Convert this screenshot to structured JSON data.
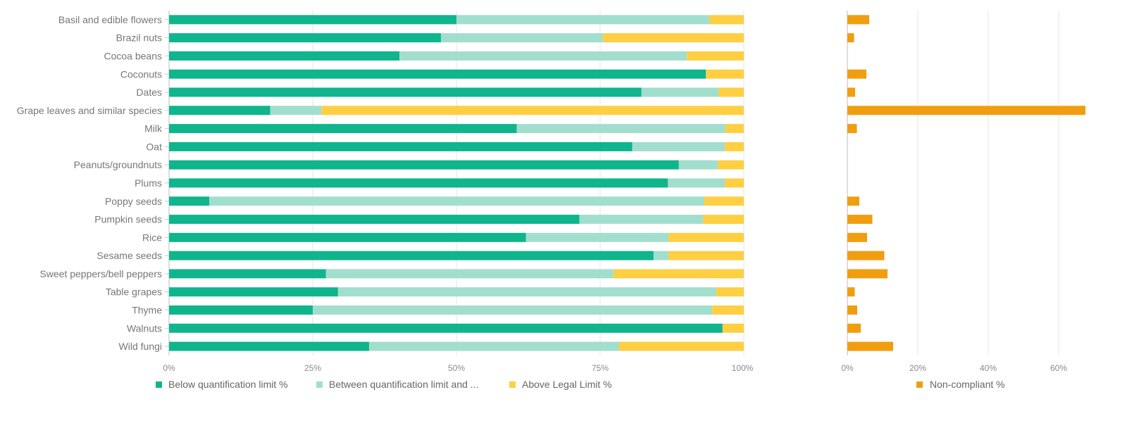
{
  "colors": {
    "below": "#0fb58c",
    "between": "#a2dece",
    "above": "#fecf43",
    "noncompliant": "#f09e10"
  },
  "chart_data": [
    {
      "type": "bar",
      "orientation": "horizontal",
      "stacked": "100%",
      "categories": [
        "Basil and edible flowers",
        "Brazil nuts",
        "Cocoa beans",
        "Coconuts",
        "Dates",
        "Grape leaves and similar species",
        "Milk",
        "Oat",
        "Peanuts/groundnuts",
        "Plums",
        "Poppy seeds",
        "Pumpkin seeds",
        "Rice",
        "Sesame seeds",
        "Sweet peppers/bell peppers",
        "Table grapes",
        "Thyme",
        "Walnuts",
        "Wild fungi"
      ],
      "series": [
        {
          "name": "Below quantification limit %",
          "values": [
            50.0,
            47.3,
            40.1,
            93.4,
            82.2,
            17.6,
            60.5,
            80.6,
            88.7,
            86.8,
            7.0,
            71.4,
            62.1,
            84.3,
            27.3,
            29.4,
            25.0,
            96.3,
            34.8
          ]
        },
        {
          "name": "Between quantification limit and ...",
          "values": [
            44.0,
            28.2,
            50.0,
            0.0,
            13.4,
            8.9,
            36.3,
            16.1,
            6.8,
            9.9,
            86.1,
            21.5,
            24.8,
            2.6,
            50.0,
            65.8,
            69.5,
            0.0,
            43.5
          ]
        },
        {
          "name": "Above Legal Limit %",
          "values": [
            6.0,
            24.5,
            9.9,
            6.6,
            4.4,
            73.5,
            3.2,
            3.3,
            4.5,
            3.3,
            6.9,
            7.1,
            13.1,
            13.1,
            22.7,
            4.8,
            5.5,
            3.7,
            21.7
          ]
        }
      ],
      "xlim": [
        0,
        100
      ],
      "xticks": [
        "0%",
        "25%",
        "50%",
        "75%",
        "100%"
      ],
      "grid": true,
      "legend": "bottom-left"
    },
    {
      "type": "bar",
      "orientation": "horizontal",
      "series": [
        {
          "name": "Non-compliant %",
          "values": [
            6.2,
            1.9,
            0.0,
            5.4,
            2.2,
            67.6,
            2.7,
            0.0,
            0.0,
            0.0,
            3.4,
            7.1,
            5.6,
            10.5,
            11.4,
            2.1,
            2.8,
            3.8,
            13.0
          ]
        }
      ],
      "xlim": [
        0,
        68
      ],
      "xtick_values": [
        0,
        20,
        40,
        60
      ],
      "xticks": [
        "0%",
        "20%",
        "40%",
        "60%"
      ],
      "grid": true,
      "legend": "bottom-center"
    }
  ]
}
